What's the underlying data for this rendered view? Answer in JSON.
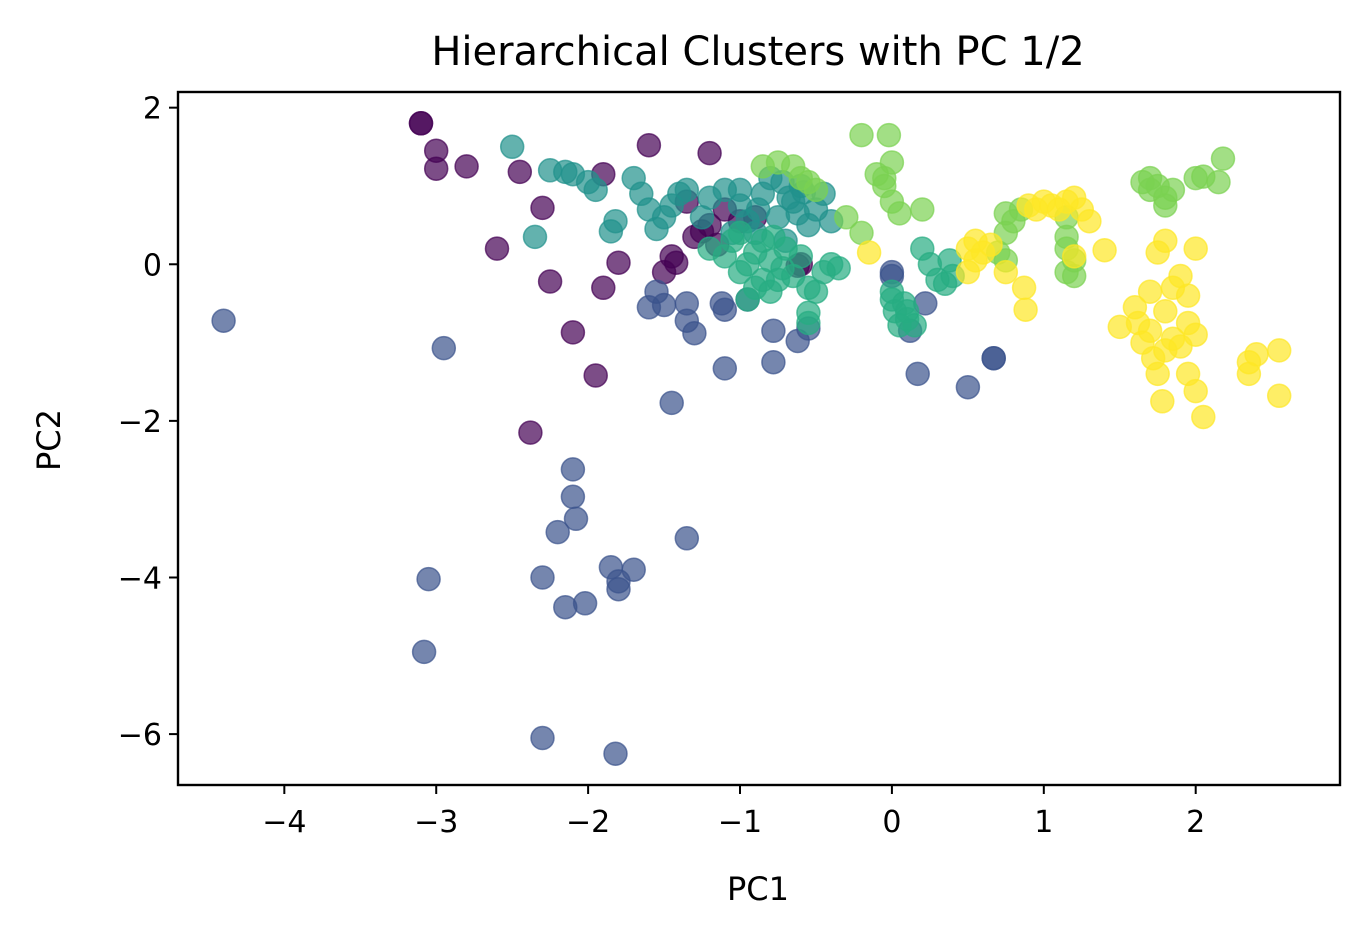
{
  "chart_data": {
    "type": "scatter",
    "title": "Hierarchical Clusters with PC 1/2",
    "xlabel": "PC1",
    "ylabel": "PC2",
    "xlim": [
      -4.7,
      2.95
    ],
    "ylim": [
      -6.65,
      2.2
    ],
    "xticks": [
      {
        "value": -4,
        "label": "−4"
      },
      {
        "value": -3,
        "label": "−3"
      },
      {
        "value": -2,
        "label": "−2"
      },
      {
        "value": -1,
        "label": "−1"
      },
      {
        "value": 0,
        "label": "0"
      },
      {
        "value": 1,
        "label": "1"
      },
      {
        "value": 2,
        "label": "2"
      }
    ],
    "yticks": [
      {
        "value": 2,
        "label": "2"
      },
      {
        "value": 0,
        "label": "0"
      },
      {
        "value": -2,
        "label": "−2"
      },
      {
        "value": -4,
        "label": "−4"
      },
      {
        "value": -6,
        "label": "−6"
      }
    ],
    "grid": false,
    "legend": "none",
    "marker_alpha": 0.7,
    "series": [
      {
        "color": "#440154",
        "points": [
          [
            -3.1,
            1.8
          ],
          [
            -3.1,
            1.8
          ],
          [
            -3.0,
            1.45
          ],
          [
            -3.0,
            1.22
          ],
          [
            -2.8,
            1.25
          ],
          [
            -2.45,
            1.18
          ],
          [
            -1.6,
            1.52
          ],
          [
            -1.2,
            1.42
          ],
          [
            -1.9,
            1.15
          ],
          [
            -2.3,
            0.72
          ],
          [
            -2.6,
            0.2
          ],
          [
            -1.8,
            0.02
          ],
          [
            -2.25,
            -0.22
          ],
          [
            -1.9,
            -0.3
          ],
          [
            -2.1,
            -0.87
          ],
          [
            -1.95,
            -1.42
          ],
          [
            -2.38,
            -2.15
          ],
          [
            -1.45,
            0.1
          ],
          [
            -1.42,
            0.02
          ],
          [
            -1.3,
            0.35
          ],
          [
            -1.25,
            0.42
          ],
          [
            -1.2,
            0.5
          ],
          [
            -1.35,
            0.8
          ],
          [
            -1.1,
            0.7
          ],
          [
            -1.5,
            -0.1
          ],
          [
            -0.6,
            0.0
          ],
          [
            -0.62,
            -0.02
          ],
          [
            -1.15,
            0.25
          ],
          [
            -1.0,
            0.55
          ],
          [
            -0.9,
            0.6
          ]
        ]
      },
      {
        "color": "#3b528b",
        "points": [
          [
            -4.4,
            -0.72
          ],
          [
            -2.95,
            -1.07
          ],
          [
            -2.1,
            -2.62
          ],
          [
            -2.1,
            -2.97
          ],
          [
            -2.08,
            -3.25
          ],
          [
            -2.2,
            -3.42
          ],
          [
            -1.35,
            -3.5
          ],
          [
            -3.05,
            -4.02
          ],
          [
            -2.3,
            -4.0
          ],
          [
            -1.85,
            -3.87
          ],
          [
            -1.7,
            -3.9
          ],
          [
            -1.8,
            -4.05
          ],
          [
            -1.8,
            -4.15
          ],
          [
            -2.15,
            -4.38
          ],
          [
            -2.02,
            -4.33
          ],
          [
            -3.08,
            -4.95
          ],
          [
            -2.3,
            -6.05
          ],
          [
            -1.82,
            -6.25
          ],
          [
            -1.45,
            -1.77
          ],
          [
            -1.1,
            -1.33
          ],
          [
            -0.78,
            -1.25
          ],
          [
            -0.78,
            -0.85
          ],
          [
            -0.62,
            -0.98
          ],
          [
            -0.55,
            -0.82
          ],
          [
            -1.3,
            -0.88
          ],
          [
            -1.35,
            -0.72
          ],
          [
            -1.5,
            -0.52
          ],
          [
            -1.6,
            -0.55
          ],
          [
            -1.1,
            -0.58
          ],
          [
            -1.12,
            -0.5
          ],
          [
            -0.95,
            -0.45
          ],
          [
            -1.35,
            -0.5
          ],
          [
            -1.55,
            -0.35
          ],
          [
            0.0,
            -0.1
          ],
          [
            0.0,
            -0.15
          ],
          [
            0.12,
            -0.85
          ],
          [
            0.17,
            -1.4
          ],
          [
            0.22,
            -0.5
          ],
          [
            0.5,
            -1.57
          ],
          [
            0.67,
            -1.2
          ],
          [
            0.67,
            -1.2
          ]
        ]
      },
      {
        "color": "#21918c",
        "points": [
          [
            -2.5,
            1.5
          ],
          [
            -2.25,
            1.2
          ],
          [
            -2.15,
            1.18
          ],
          [
            -2.1,
            1.15
          ],
          [
            -2.0,
            1.05
          ],
          [
            -1.95,
            0.95
          ],
          [
            -1.82,
            0.55
          ],
          [
            -1.85,
            0.42
          ],
          [
            -1.7,
            1.1
          ],
          [
            -1.65,
            0.9
          ],
          [
            -1.6,
            0.7
          ],
          [
            -1.55,
            0.45
          ],
          [
            -1.5,
            0.6
          ],
          [
            -1.45,
            0.75
          ],
          [
            -1.4,
            0.9
          ],
          [
            -1.35,
            0.95
          ],
          [
            -1.25,
            0.6
          ],
          [
            -1.2,
            0.85
          ],
          [
            -1.1,
            0.95
          ],
          [
            -1.0,
            0.75
          ],
          [
            -0.95,
            0.55
          ],
          [
            -0.9,
            0.4
          ],
          [
            -0.85,
            0.9
          ],
          [
            -0.8,
            1.1
          ],
          [
            -0.75,
            0.6
          ],
          [
            -0.7,
            0.3
          ],
          [
            -0.65,
            0.8
          ],
          [
            -0.6,
            1.0
          ],
          [
            -0.55,
            0.5
          ],
          [
            -0.5,
            0.7
          ],
          [
            -0.45,
            0.9
          ],
          [
            -0.4,
            0.55
          ],
          [
            -0.72,
            1.05
          ],
          [
            -0.68,
            0.85
          ],
          [
            -0.62,
            0.65
          ],
          [
            -0.58,
            0.92
          ],
          [
            -2.35,
            0.35
          ],
          [
            -1.0,
            0.95
          ],
          [
            -1.05,
            0.4
          ],
          [
            -0.88,
            0.7
          ]
        ]
      },
      {
        "color": "#27ad81",
        "points": [
          [
            -1.2,
            0.2
          ],
          [
            -1.1,
            0.1
          ],
          [
            -1.05,
            0.3
          ],
          [
            -1.0,
            -0.1
          ],
          [
            -0.95,
            0.0
          ],
          [
            -0.9,
            0.15
          ],
          [
            -0.85,
            0.3
          ],
          [
            -0.8,
            0.05
          ],
          [
            -0.75,
            -0.2
          ],
          [
            -0.7,
            0.2
          ],
          [
            -0.65,
            -0.15
          ],
          [
            -0.6,
            0.1
          ],
          [
            -0.55,
            -0.3
          ],
          [
            -0.5,
            -0.35
          ],
          [
            -0.45,
            -0.1
          ],
          [
            -0.4,
            0.0
          ],
          [
            -0.9,
            -0.3
          ],
          [
            -0.85,
            -0.2
          ],
          [
            -0.78,
            0.35
          ],
          [
            -0.72,
            -0.05
          ],
          [
            -0.55,
            -0.62
          ],
          [
            -0.55,
            -0.75
          ],
          [
            -0.35,
            -0.05
          ],
          [
            0.0,
            -0.35
          ],
          [
            0.0,
            -0.45
          ],
          [
            0.02,
            -0.6
          ],
          [
            0.05,
            -0.78
          ],
          [
            0.08,
            -0.5
          ],
          [
            0.1,
            -0.6
          ],
          [
            0.15,
            -0.78
          ],
          [
            0.1,
            -0.7
          ],
          [
            0.2,
            0.2
          ],
          [
            0.25,
            0.0
          ],
          [
            0.3,
            -0.2
          ],
          [
            0.35,
            -0.25
          ],
          [
            0.38,
            0.05
          ],
          [
            0.4,
            -0.15
          ],
          [
            -1.0,
            0.4
          ],
          [
            -0.95,
            -0.45
          ],
          [
            -0.8,
            -0.35
          ]
        ]
      },
      {
        "color": "#7ad151",
        "points": [
          [
            -0.85,
            1.25
          ],
          [
            -0.75,
            1.3
          ],
          [
            -0.65,
            1.25
          ],
          [
            -0.6,
            1.1
          ],
          [
            -0.55,
            1.05
          ],
          [
            -0.5,
            0.95
          ],
          [
            -0.3,
            0.6
          ],
          [
            -0.2,
            0.4
          ],
          [
            -0.2,
            1.65
          ],
          [
            -0.02,
            1.65
          ],
          [
            0.0,
            1.3
          ],
          [
            -0.05,
            1.1
          ],
          [
            -0.1,
            1.15
          ],
          [
            -0.05,
            1.0
          ],
          [
            0.0,
            0.8
          ],
          [
            0.05,
            0.65
          ],
          [
            0.2,
            0.7
          ],
          [
            0.75,
            0.65
          ],
          [
            0.8,
            0.55
          ],
          [
            0.85,
            0.7
          ],
          [
            0.75,
            0.4
          ],
          [
            0.7,
            0.15
          ],
          [
            0.75,
            0.05
          ],
          [
            1.15,
            0.35
          ],
          [
            1.15,
            0.2
          ],
          [
            1.2,
            0.05
          ],
          [
            1.15,
            -0.1
          ],
          [
            1.2,
            -0.15
          ],
          [
            1.15,
            0.6
          ],
          [
            1.65,
            1.05
          ],
          [
            1.7,
            1.1
          ],
          [
            1.75,
            1.0
          ],
          [
            1.7,
            0.95
          ],
          [
            1.8,
            0.85
          ],
          [
            1.85,
            0.95
          ],
          [
            1.8,
            0.75
          ],
          [
            2.0,
            1.1
          ],
          [
            2.05,
            1.12
          ],
          [
            2.15,
            1.05
          ],
          [
            2.18,
            1.35
          ]
        ]
      },
      {
        "color": "#fde725",
        "points": [
          [
            -0.15,
            0.15
          ],
          [
            0.5,
            0.2
          ],
          [
            0.55,
            0.3
          ],
          [
            0.6,
            0.15
          ],
          [
            0.65,
            0.25
          ],
          [
            0.55,
            0.05
          ],
          [
            0.5,
            -0.1
          ],
          [
            0.9,
            0.75
          ],
          [
            0.95,
            0.7
          ],
          [
            1.0,
            0.8
          ],
          [
            1.05,
            0.75
          ],
          [
            1.1,
            0.7
          ],
          [
            1.15,
            0.8
          ],
          [
            1.2,
            0.85
          ],
          [
            1.25,
            0.7
          ],
          [
            1.3,
            0.55
          ],
          [
            0.75,
            -0.1
          ],
          [
            0.87,
            -0.3
          ],
          [
            0.88,
            -0.58
          ],
          [
            1.2,
            0.1
          ],
          [
            1.4,
            0.18
          ],
          [
            1.5,
            -0.8
          ],
          [
            1.6,
            -0.55
          ],
          [
            1.62,
            -0.75
          ],
          [
            1.65,
            -1.0
          ],
          [
            1.7,
            -0.85
          ],
          [
            1.72,
            -1.2
          ],
          [
            1.75,
            -1.4
          ],
          [
            1.78,
            -1.75
          ],
          [
            1.8,
            -0.6
          ],
          [
            1.85,
            -0.95
          ],
          [
            1.9,
            -1.05
          ],
          [
            1.95,
            -1.4
          ],
          [
            2.0,
            -1.62
          ],
          [
            2.05,
            -1.95
          ],
          [
            1.8,
            0.3
          ],
          [
            1.75,
            0.15
          ],
          [
            2.0,
            0.2
          ],
          [
            1.95,
            -0.4
          ],
          [
            1.85,
            -0.3
          ],
          [
            1.7,
            -0.35
          ],
          [
            1.9,
            -0.15
          ],
          [
            2.35,
            -1.4
          ],
          [
            2.35,
            -1.25
          ],
          [
            2.4,
            -1.15
          ],
          [
            2.55,
            -1.1
          ],
          [
            2.55,
            -1.68
          ],
          [
            1.95,
            -0.75
          ],
          [
            2.0,
            -0.9
          ],
          [
            1.8,
            -1.1
          ]
        ]
      }
    ]
  }
}
